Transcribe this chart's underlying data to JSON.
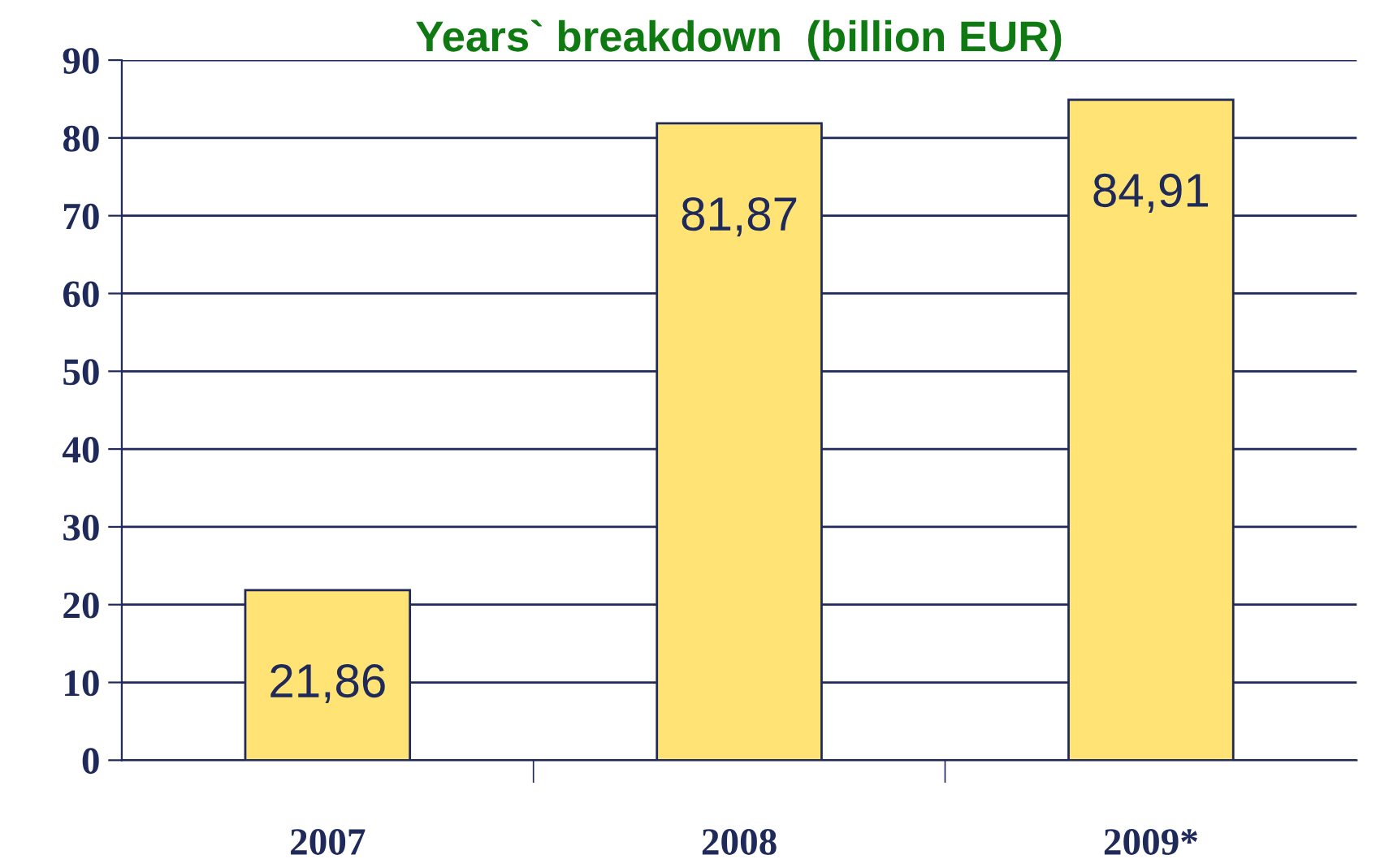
{
  "chart_data": {
    "type": "bar",
    "title": "Years` breakdown  (billion EUR)",
    "categories": [
      "2007",
      "2008",
      "2009*"
    ],
    "series": [
      {
        "color": "#ffe475",
        "values": [
          21.86,
          81.87,
          84.91
        ],
        "value_labels": [
          "21,86",
          "81,87",
          "84,91"
        ]
      }
    ],
    "ylim": [
      0,
      90
    ],
    "yticks": [
      0,
      10,
      20,
      30,
      40,
      50,
      60,
      70,
      80,
      90
    ],
    "grid": "y",
    "legend": false
  }
}
